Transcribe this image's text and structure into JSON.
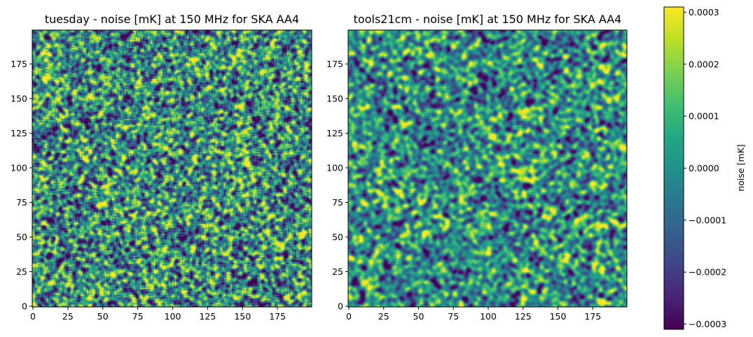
{
  "chart_data": [
    {
      "type": "heatmap",
      "title": "tuesday - noise [mK] at 150 MHz for SKA AA4",
      "grid": false,
      "xlim": [
        0,
        200
      ],
      "ylim": [
        0,
        200
      ],
      "xticks": [
        0,
        25,
        50,
        75,
        100,
        125,
        150,
        175
      ],
      "yticks": [
        0,
        25,
        50,
        75,
        100,
        125,
        150,
        175
      ],
      "xtick_labels": [
        "0",
        "25",
        "50",
        "75",
        "100",
        "125",
        "150",
        "175"
      ],
      "ytick_labels": [
        "0",
        "25",
        "50",
        "75",
        "100",
        "125",
        "150",
        "175"
      ],
      "grid_size": [
        200,
        200
      ],
      "value_range": [
        -0.00031,
        0.00031
      ],
      "texture": "fine-grained noise"
    },
    {
      "type": "heatmap",
      "title": "tools21cm - noise [mK] at 150 MHz for SKA AA4",
      "grid": false,
      "xlim": [
        0,
        200
      ],
      "ylim": [
        0,
        200
      ],
      "xticks": [
        0,
        25,
        50,
        75,
        100,
        125,
        150,
        175
      ],
      "yticks": [
        0,
        25,
        50,
        75,
        100,
        125,
        150,
        175
      ],
      "xtick_labels": [
        "0",
        "25",
        "50",
        "75",
        "100",
        "125",
        "150",
        "175"
      ],
      "ytick_labels": [
        "0",
        "25",
        "50",
        "75",
        "100",
        "125",
        "150",
        "175"
      ],
      "grid_size": [
        200,
        200
      ],
      "value_range": [
        -0.00031,
        0.00031
      ],
      "texture": "smoother, larger-scale noise"
    }
  ],
  "colorbar": {
    "label": "noise [mK]",
    "colormap": "viridis",
    "range": [
      -0.00031,
      0.00031
    ],
    "ticks": [
      -0.0003,
      -0.0002,
      -0.0001,
      0.0,
      0.0001,
      0.0002,
      0.0003
    ],
    "tick_labels": [
      "−0.0003",
      "−0.0002",
      "−0.0001",
      "0.0000",
      "0.0001",
      "0.0002",
      "0.0003"
    ]
  },
  "colors": {
    "viridis": [
      "#440154",
      "#482475",
      "#414487",
      "#355f8d",
      "#2a788e",
      "#21918c",
      "#22a884",
      "#44bf70",
      "#7ad151",
      "#bddf26",
      "#fde725"
    ]
  }
}
